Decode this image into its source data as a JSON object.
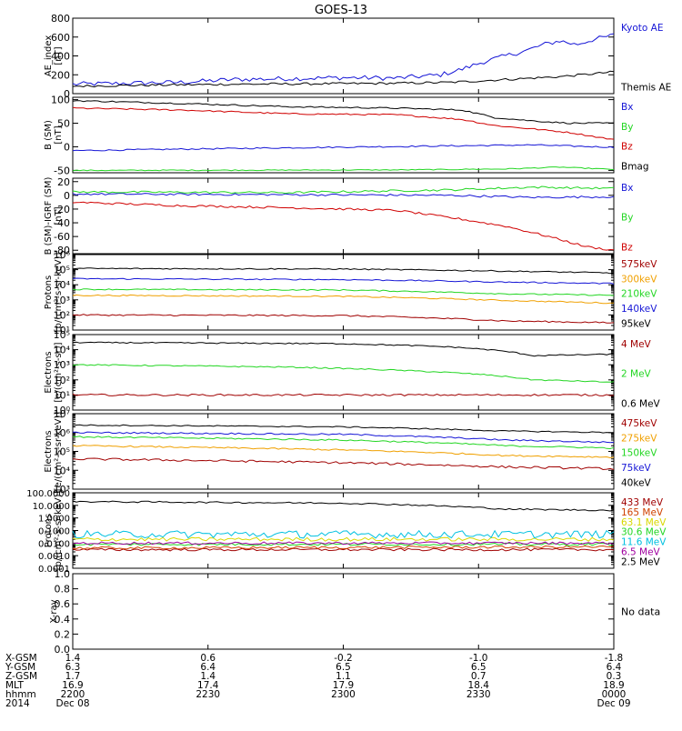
{
  "title": "GOES-13",
  "no_data": "No data",
  "colors": {
    "black": "#000000",
    "blue": "#1515d6",
    "green": "#22d622",
    "red": "#d00000",
    "dark_red": "#a00000",
    "orange": "#f0a000",
    "yellow": "#d8d800",
    "cyan": "#00c0e0",
    "magenta": "#a000a0",
    "medium_red": "#d04000"
  },
  "chart_data": [
    {
      "type": "line",
      "id": "ae",
      "ylabel": "AE_index\n[nT]",
      "scale": "linear",
      "ylim": [
        0,
        800
      ],
      "yticks": [
        0,
        200,
        400,
        600,
        800
      ],
      "ytick_labels": [
        "0",
        "200",
        "400",
        "600",
        "800"
      ],
      "series": [
        {
          "name": "Kyoto AE",
          "color": "blue",
          "points": [
            [
              0,
              100
            ],
            [
              0.1,
              110
            ],
            [
              0.2,
              120
            ],
            [
              0.3,
              150
            ],
            [
              0.4,
              160
            ],
            [
              0.5,
              170
            ],
            [
              0.6,
              165
            ],
            [
              0.68,
              200
            ],
            [
              0.72,
              260
            ],
            [
              0.76,
              340
            ],
            [
              0.8,
              400
            ],
            [
              0.84,
              460
            ],
            [
              0.87,
              520
            ],
            [
              0.9,
              560
            ],
            [
              0.93,
              520
            ],
            [
              0.96,
              570
            ],
            [
              1,
              620
            ]
          ],
          "noise": 25
        },
        {
          "name": "Themis AE",
          "color": "black",
          "points": [
            [
              0,
              80
            ],
            [
              0.3,
              100
            ],
            [
              0.6,
              110
            ],
            [
              0.7,
              120
            ],
            [
              0.8,
              150
            ],
            [
              0.9,
              180
            ],
            [
              1,
              230
            ]
          ],
          "noise": 12
        }
      ]
    },
    {
      "type": "line",
      "id": "bsm",
      "ylabel": "B (SM)\n[nT]",
      "scale": "linear",
      "ylim": [
        -55,
        105
      ],
      "yticks": [
        -50,
        0,
        50,
        100
      ],
      "ytick_labels": [
        "-50",
        "0",
        "50",
        "100"
      ],
      "series": [
        {
          "name": "Bx",
          "color": "blue",
          "points": [
            [
              0,
              -8
            ],
            [
              0.4,
              -2
            ],
            [
              0.7,
              2
            ],
            [
              0.85,
              4
            ],
            [
              1,
              -1
            ]
          ],
          "noise": 1.5
        },
        {
          "name": "By",
          "color": "green",
          "points": [
            [
              0,
              -50
            ],
            [
              0.6,
              -49
            ],
            [
              0.8,
              -47
            ],
            [
              0.9,
              -43
            ],
            [
              1,
              -48
            ]
          ],
          "noise": 1
        },
        {
          "name": "Bz",
          "color": "red",
          "points": [
            [
              0,
              82
            ],
            [
              0.2,
              78
            ],
            [
              0.4,
              70
            ],
            [
              0.6,
              68
            ],
            [
              0.72,
              58
            ],
            [
              0.78,
              45
            ],
            [
              0.85,
              38
            ],
            [
              0.92,
              30
            ],
            [
              1,
              15
            ]
          ],
          "noise": 1.5
        },
        {
          "name": "Bmag",
          "color": "black",
          "points": [
            [
              0,
              98
            ],
            [
              0.2,
              92
            ],
            [
              0.4,
              85
            ],
            [
              0.6,
              82
            ],
            [
              0.72,
              78
            ],
            [
              0.78,
              62
            ],
            [
              0.85,
              55
            ],
            [
              0.92,
              50
            ],
            [
              1,
              50
            ]
          ],
          "noise": 1.5
        }
      ]
    },
    {
      "type": "line",
      "id": "bigrf",
      "ylabel": "B (SM)-IGRF (SM)\n[nT]",
      "scale": "linear",
      "ylim": [
        -85,
        25
      ],
      "yticks": [
        -80,
        -60,
        -40,
        -20,
        0,
        20
      ],
      "ytick_labels": [
        "-80",
        "-60",
        "-40",
        "-20",
        "0",
        "20"
      ],
      "series": [
        {
          "name": "Bx",
          "color": "blue",
          "points": [
            [
              0,
              2
            ],
            [
              0.4,
              1
            ],
            [
              0.7,
              0
            ],
            [
              0.85,
              -3
            ],
            [
              1,
              -2
            ]
          ],
          "noise": 1.5
        },
        {
          "name": "By",
          "color": "green",
          "points": [
            [
              0,
              5
            ],
            [
              0.4,
              4
            ],
            [
              0.7,
              8
            ],
            [
              0.85,
              12
            ],
            [
              1,
              10
            ]
          ],
          "noise": 1.5
        },
        {
          "name": "Bz",
          "color": "red",
          "points": [
            [
              0,
              -10
            ],
            [
              0.2,
              -15
            ],
            [
              0.4,
              -18
            ],
            [
              0.6,
              -22
            ],
            [
              0.72,
              -35
            ],
            [
              0.8,
              -45
            ],
            [
              0.88,
              -60
            ],
            [
              0.95,
              -75
            ],
            [
              1,
              -80
            ]
          ],
          "noise": 1.5
        }
      ]
    },
    {
      "type": "line",
      "id": "protons",
      "ylabel": "Protons\n[p/(cm²-s-sr-keV)]",
      "scale": "log",
      "ylim": [
        10,
        1000000
      ],
      "yticks": [
        10,
        100,
        1000,
        10000,
        100000,
        1000000
      ],
      "ytick_labels": [
        "10¹",
        "10²",
        "10³",
        "10⁴",
        "10⁵",
        "10⁶"
      ],
      "series": [
        {
          "name": "575keV",
          "color": "dark_red",
          "points": [
            [
              0,
              100
            ],
            [
              0.5,
              90
            ],
            [
              0.8,
              40
            ],
            [
              1,
              30
            ]
          ],
          "noise": 0.05
        },
        {
          "name": "300keV",
          "color": "orange",
          "points": [
            [
              0,
              2000
            ],
            [
              0.5,
              1700
            ],
            [
              0.8,
              900
            ],
            [
              1,
              600
            ]
          ],
          "noise": 0.04
        },
        {
          "name": "210keV",
          "color": "green",
          "points": [
            [
              0,
              5000
            ],
            [
              0.5,
              4500
            ],
            [
              0.8,
              2500
            ],
            [
              1,
              2000
            ]
          ],
          "noise": 0.04
        },
        {
          "name": "140keV",
          "color": "blue",
          "points": [
            [
              0,
              25000
            ],
            [
              0.5,
              22000
            ],
            [
              0.8,
              15000
            ],
            [
              1,
              12000
            ]
          ],
          "noise": 0.04
        },
        {
          "name": "95keV",
          "color": "black",
          "points": [
            [
              0,
              120000
            ],
            [
              0.5,
              110000
            ],
            [
              0.8,
              80000
            ],
            [
              1,
              60000
            ]
          ],
          "noise": 0.04
        }
      ]
    },
    {
      "type": "line",
      "id": "electrons_mev",
      "ylabel": "Electrons\n[e/(cm²-s-sr)]",
      "scale": "log",
      "ylim": [
        1,
        100000
      ],
      "yticks": [
        1,
        10,
        100,
        1000,
        10000,
        100000
      ],
      "ytick_labels": [
        "10⁰",
        "10¹",
        "10²",
        "10³",
        "10⁴",
        "10⁵"
      ],
      "series": [
        {
          "name": "4 MeV",
          "color": "dark_red",
          "points": [
            [
              0,
              10
            ],
            [
              0.5,
              10
            ],
            [
              1,
              10
            ]
          ],
          "noise": 0.06
        },
        {
          "name": "2 MeV",
          "color": "green",
          "points": [
            [
              0,
              1000
            ],
            [
              0.4,
              700
            ],
            [
              0.7,
              300
            ],
            [
              0.85,
              100
            ],
            [
              1,
              70
            ]
          ],
          "noise": 0.04
        },
        {
          "name": "0.6 MeV",
          "color": "black",
          "points": [
            [
              0,
              30000
            ],
            [
              0.5,
              25000
            ],
            [
              0.7,
              15000
            ],
            [
              0.85,
              4000
            ],
            [
              1,
              5000
            ]
          ],
          "noise": 0.04
        }
      ]
    },
    {
      "type": "line",
      "id": "electrons_kev",
      "ylabel": "Electrons\n[e/(cm²-s-sr-keV)]",
      "scale": "log",
      "ylim": [
        1000,
        10000000
      ],
      "yticks": [
        1000,
        10000,
        100000,
        1000000,
        10000000
      ],
      "ytick_labels": [
        "10³",
        "10⁴",
        "10⁵",
        "10⁶",
        "10⁷"
      ],
      "series": [
        {
          "name": "475keV",
          "color": "dark_red",
          "points": [
            [
              0,
              40000
            ],
            [
              0.5,
              25000
            ],
            [
              0.8,
              15000
            ],
            [
              1,
              12000
            ]
          ],
          "noise": 0.06
        },
        {
          "name": "275keV",
          "color": "orange",
          "points": [
            [
              0,
              200000
            ],
            [
              0.5,
              120000
            ],
            [
              0.8,
              60000
            ],
            [
              1,
              50000
            ]
          ],
          "noise": 0.04
        },
        {
          "name": "150keV",
          "color": "green",
          "points": [
            [
              0,
              600000
            ],
            [
              0.5,
              400000
            ],
            [
              0.8,
              200000
            ],
            [
              1,
              150000
            ]
          ],
          "noise": 0.04
        },
        {
          "name": "75keV",
          "color": "blue",
          "points": [
            [
              0,
              1000000
            ],
            [
              0.5,
              800000
            ],
            [
              0.8,
              400000
            ],
            [
              1,
              300000
            ]
          ],
          "noise": 0.04
        },
        {
          "name": "40keV",
          "color": "black",
          "points": [
            [
              0,
              2500000
            ],
            [
              0.5,
              2000000
            ],
            [
              0.8,
              1200000
            ],
            [
              1,
              1000000
            ]
          ],
          "noise": 0.03
        }
      ]
    },
    {
      "type": "line",
      "id": "protons_mev",
      "ylabel": "Protons\n[p/(cm²-s-sr-keV)]",
      "scale": "log",
      "ylim": [
        0.0001,
        100
      ],
      "yticks": [
        0.0001,
        0.001,
        0.01,
        0.1,
        1,
        10,
        100
      ],
      "ytick_labels": [
        "0.0001",
        "0.0010",
        "0.0100",
        "0.1000",
        "1.0000",
        "10.0000",
        "100.0000"
      ],
      "series": [
        {
          "name": "433 MeV",
          "color": "dark_red",
          "points": [
            [
              0,
              0.003
            ],
            [
              1,
              0.003
            ]
          ],
          "noise": 0.1
        },
        {
          "name": "165 MeV",
          "color": "medium_red",
          "points": [
            [
              0,
              0.004
            ],
            [
              1,
              0.005
            ]
          ],
          "noise": 0.1
        },
        {
          "name": "63.1 MeV",
          "color": "yellow",
          "points": [
            [
              0,
              0.02
            ],
            [
              1,
              0.02
            ]
          ],
          "noise": 0.15
        },
        {
          "name": "30.6 MeV",
          "color": "green",
          "points": [
            [
              0,
              0.008
            ],
            [
              1,
              0.008
            ]
          ],
          "noise": 0.1
        },
        {
          "name": "11.6 MeV",
          "color": "cyan",
          "points": [
            [
              0,
              0.05
            ],
            [
              1,
              0.05
            ]
          ],
          "noise": 0.3
        },
        {
          "name": "6.5 MeV",
          "color": "magenta",
          "points": [
            [
              0,
              0.01
            ],
            [
              1,
              0.01
            ]
          ],
          "noise": 0.1
        },
        {
          "name": "2.5 MeV",
          "color": "black",
          "points": [
            [
              0,
              20
            ],
            [
              0.5,
              15
            ],
            [
              0.8,
              5
            ],
            [
              1,
              4
            ]
          ],
          "noise": 0.06
        }
      ]
    },
    {
      "type": "line",
      "id": "xray",
      "ylabel": "X-ray",
      "scale": "linear",
      "ylim": [
        0,
        1
      ],
      "yticks": [
        0,
        0.2,
        0.4,
        0.6,
        0.8,
        1.0
      ],
      "ytick_labels": [
        "0.0",
        "0.2",
        "0.4",
        "0.6",
        "0.8",
        "1.0"
      ],
      "series": []
    }
  ],
  "x_axis": {
    "ticks": [
      0,
      0.25,
      0.5,
      0.75,
      1
    ],
    "rows": [
      {
        "label": "X-GSM",
        "values": [
          "1.4",
          "0.6",
          "-0.2",
          "-1.0",
          "-1.8"
        ]
      },
      {
        "label": "Y-GSM",
        "values": [
          "6.3",
          "6.4",
          "6.5",
          "6.5",
          "6.4"
        ]
      },
      {
        "label": "Z-GSM",
        "values": [
          "1.7",
          "1.4",
          "1.1",
          "0.7",
          "0.3"
        ]
      },
      {
        "label": "MLT",
        "values": [
          "16.9",
          "17.4",
          "17.9",
          "18.4",
          "18.9"
        ]
      },
      {
        "label": "hhmm",
        "values": [
          "2200",
          "2230",
          "2300",
          "2330",
          "0000"
        ]
      },
      {
        "label": "2014",
        "values": [
          "Dec 08",
          "",
          "",
          "",
          "Dec 09"
        ]
      }
    ]
  }
}
